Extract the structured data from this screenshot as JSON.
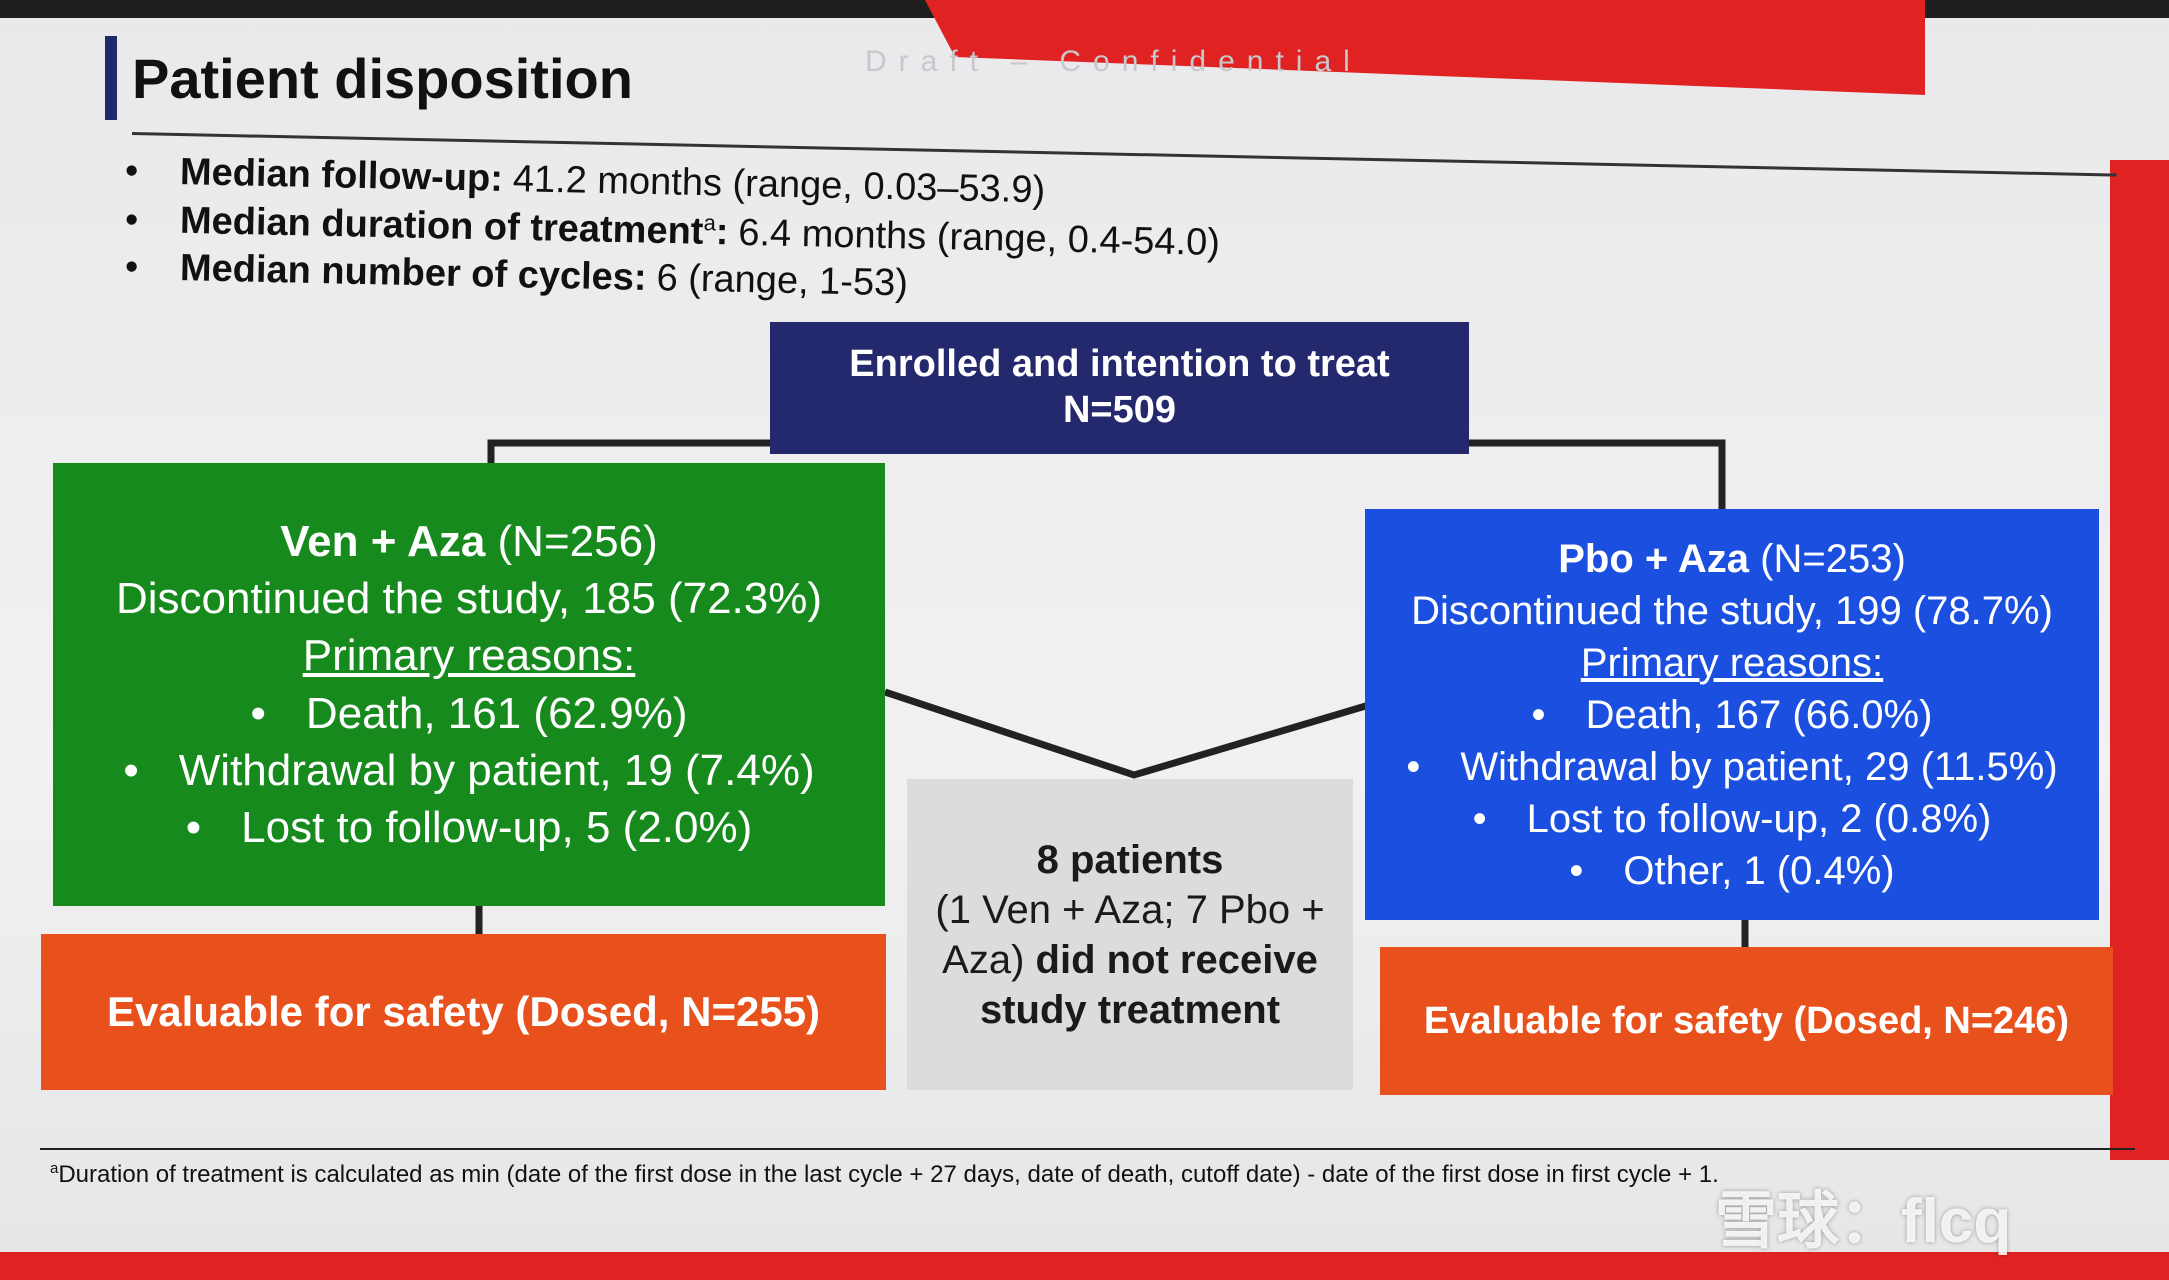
{
  "header": {
    "title": "Patient disposition",
    "watermark": "Draft – Confidential"
  },
  "bullets": [
    {
      "label": "Median follow-up:",
      "text": "41.2 months (range, 0.03–53.9)"
    },
    {
      "label": "Median duration of treatment",
      "sup": "a",
      "label_end": ":",
      "text": "6.4 months (range, 0.4-54.0)"
    },
    {
      "label": "Median number of cycles:",
      "text": "6 (range, 1-53)"
    }
  ],
  "enrolled": {
    "title": "Enrolled and intention to treat",
    "n": "N=509"
  },
  "arms": [
    {
      "name": "Ven + Aza",
      "n": "(N=256)",
      "discontinued": "Discontinued the study, 185 (72.3%)",
      "reasons_heading": "Primary reasons:",
      "reasons": [
        "Death, 161 (62.9%)",
        "Withdrawal by patient, 19 (7.4%)",
        "Lost to follow-up, 5 (2.0%)"
      ],
      "safety": "Evaluable for safety (Dosed, N=255)"
    },
    {
      "name": "Pbo + Aza",
      "n": "(N=253)",
      "discontinued": "Discontinued the study, 199 (78.7%)",
      "reasons_heading": "Primary reasons:",
      "reasons": [
        "Death, 167 (66.0%)",
        "Withdrawal by patient, 29 (11.5%)",
        "Lost to follow-up, 2 (0.8%)",
        "Other, 1 (0.4%)"
      ],
      "safety": "Evaluable for safety (Dosed, N=246)"
    }
  ],
  "not_treated": {
    "count": "8 patients",
    "detail": "(1 Ven + Aza; 7 Pbo + Aza)",
    "note": "did not receive study treatment"
  },
  "footnote": {
    "marker": "a",
    "text": "Duration of treatment is calculated as min (date of the first dose in the last cycle + 27 days, date of death, cutoff date) - date of the first dose in first cycle + 1."
  },
  "logo": "雪球：flcq"
}
